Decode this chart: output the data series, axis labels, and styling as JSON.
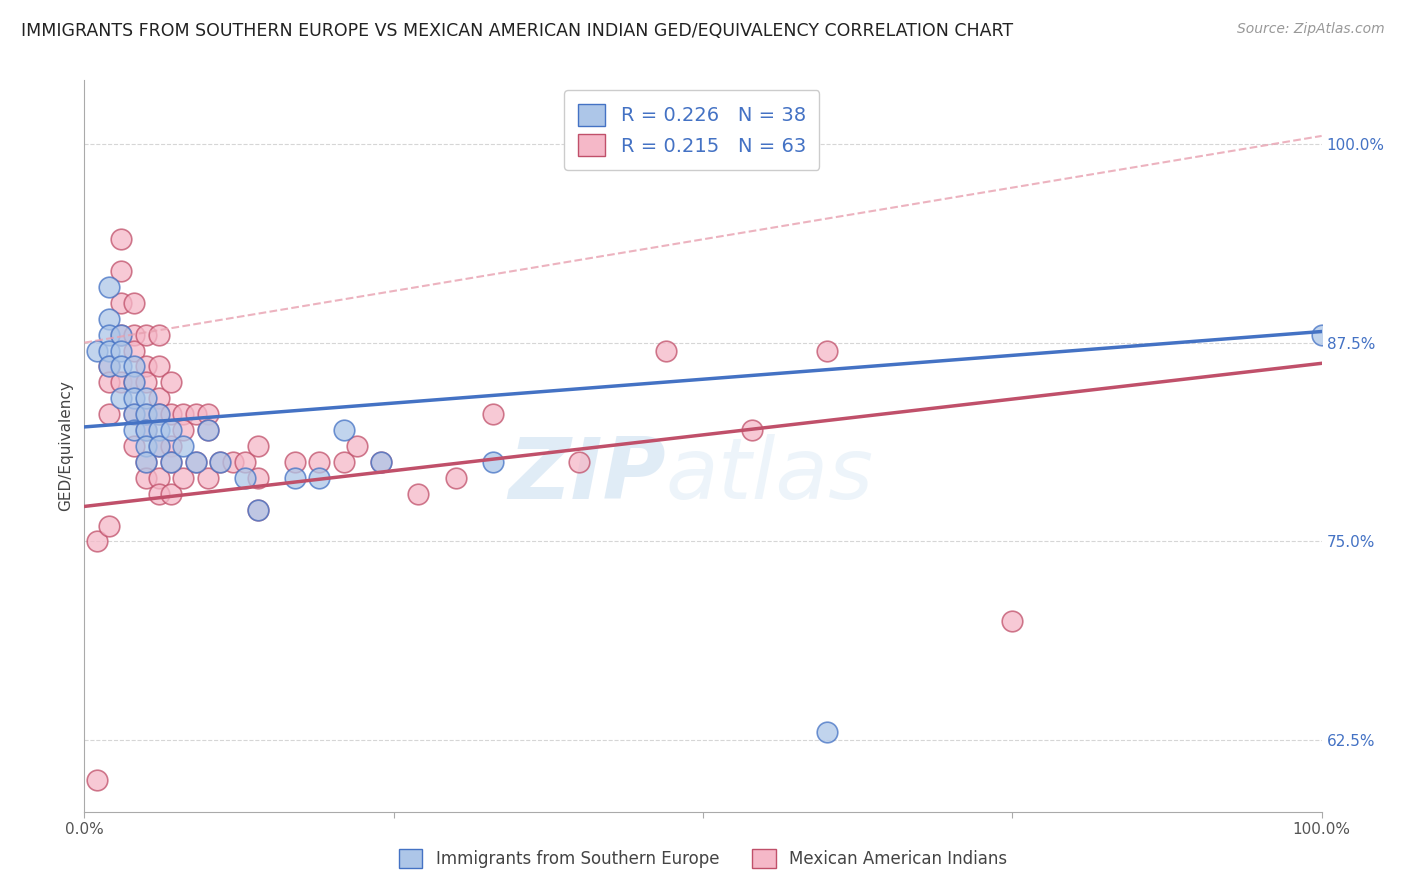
{
  "title": "IMMIGRANTS FROM SOUTHERN EUROPE VS MEXICAN AMERICAN INDIAN GED/EQUIVALENCY CORRELATION CHART",
  "source": "Source: ZipAtlas.com",
  "ylabel": "GED/Equivalency",
  "xlim": [
    0.0,
    1.0
  ],
  "ylim": [
    0.58,
    1.04
  ],
  "legend_r1": "R = 0.226",
  "legend_n1": "N = 38",
  "legend_r2": "R = 0.215",
  "legend_n2": "N = 63",
  "color_blue": "#adc6e8",
  "color_pink": "#f5b8c8",
  "line_blue": "#4472c4",
  "line_pink": "#c0506a",
  "line_dashed": "#e8a0b0",
  "watermark_zip": "ZIP",
  "watermark_atlas": "atlas",
  "blue_scatter_x": [
    0.01,
    0.02,
    0.02,
    0.02,
    0.02,
    0.02,
    0.03,
    0.03,
    0.03,
    0.03,
    0.04,
    0.04,
    0.04,
    0.04,
    0.04,
    0.05,
    0.05,
    0.05,
    0.05,
    0.05,
    0.06,
    0.06,
    0.06,
    0.07,
    0.07,
    0.08,
    0.09,
    0.1,
    0.11,
    0.13,
    0.14,
    0.17,
    0.19,
    0.21,
    0.24,
    0.33,
    0.6,
    1.0
  ],
  "blue_scatter_y": [
    0.87,
    0.91,
    0.89,
    0.88,
    0.87,
    0.86,
    0.88,
    0.87,
    0.86,
    0.84,
    0.86,
    0.85,
    0.84,
    0.83,
    0.82,
    0.84,
    0.83,
    0.82,
    0.81,
    0.8,
    0.83,
    0.82,
    0.81,
    0.82,
    0.8,
    0.81,
    0.8,
    0.82,
    0.8,
    0.79,
    0.77,
    0.79,
    0.79,
    0.82,
    0.8,
    0.8,
    0.63,
    0.88
  ],
  "pink_scatter_x": [
    0.01,
    0.01,
    0.02,
    0.02,
    0.02,
    0.02,
    0.03,
    0.03,
    0.03,
    0.03,
    0.03,
    0.04,
    0.04,
    0.04,
    0.04,
    0.04,
    0.04,
    0.05,
    0.05,
    0.05,
    0.05,
    0.05,
    0.05,
    0.05,
    0.06,
    0.06,
    0.06,
    0.06,
    0.06,
    0.06,
    0.06,
    0.07,
    0.07,
    0.07,
    0.07,
    0.07,
    0.08,
    0.08,
    0.08,
    0.09,
    0.09,
    0.1,
    0.1,
    0.1,
    0.11,
    0.12,
    0.13,
    0.14,
    0.14,
    0.14,
    0.17,
    0.19,
    0.21,
    0.22,
    0.24,
    0.27,
    0.3,
    0.33,
    0.4,
    0.47,
    0.54,
    0.6,
    0.75
  ],
  "pink_scatter_y": [
    0.75,
    0.6,
    0.86,
    0.85,
    0.83,
    0.76,
    0.94,
    0.92,
    0.9,
    0.88,
    0.85,
    0.9,
    0.88,
    0.87,
    0.85,
    0.83,
    0.81,
    0.88,
    0.86,
    0.85,
    0.83,
    0.82,
    0.8,
    0.79,
    0.88,
    0.86,
    0.84,
    0.83,
    0.81,
    0.79,
    0.78,
    0.85,
    0.83,
    0.81,
    0.8,
    0.78,
    0.83,
    0.82,
    0.79,
    0.83,
    0.8,
    0.83,
    0.82,
    0.79,
    0.8,
    0.8,
    0.8,
    0.81,
    0.79,
    0.77,
    0.8,
    0.8,
    0.8,
    0.81,
    0.8,
    0.78,
    0.79,
    0.83,
    0.8,
    0.87,
    0.82,
    0.87,
    0.7
  ],
  "blue_line_x": [
    0.0,
    1.0
  ],
  "blue_line_y": [
    0.822,
    0.882
  ],
  "pink_line_x": [
    0.0,
    1.0
  ],
  "pink_line_y": [
    0.772,
    0.862
  ],
  "dashed_line_x": [
    0.0,
    1.0
  ],
  "dashed_line_y": [
    0.875,
    1.005
  ]
}
